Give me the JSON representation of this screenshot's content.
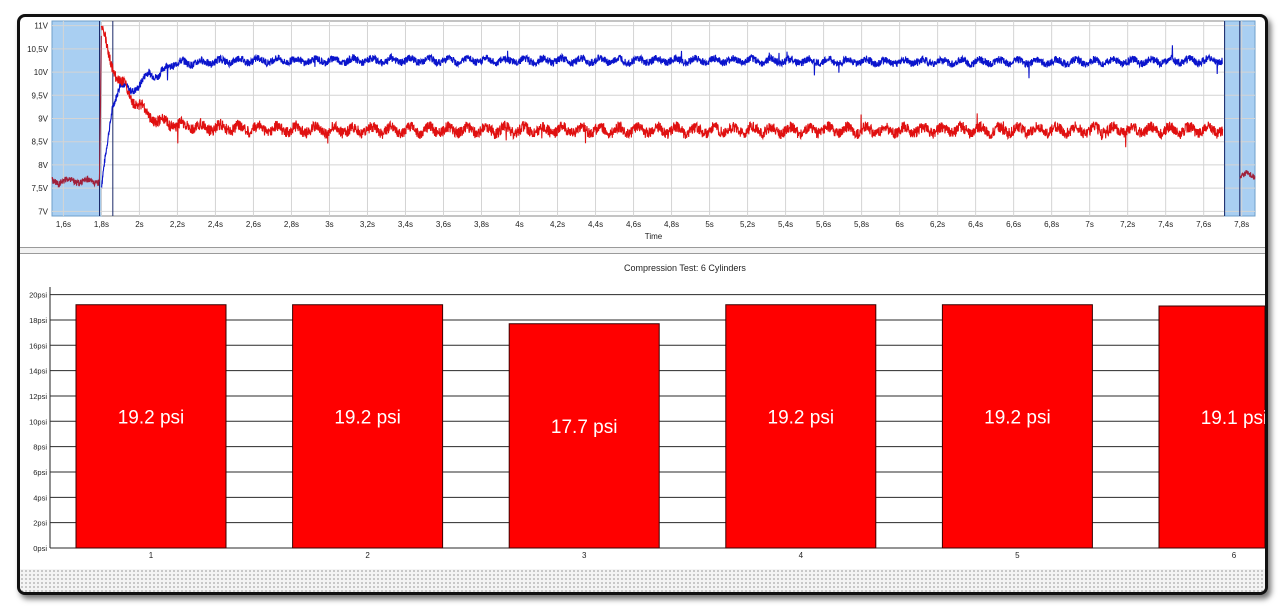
{
  "chart_data": [
    {
      "type": "line",
      "title": "",
      "xlabel": "Time",
      "ylabel": "",
      "xlim": [
        1.54,
        7.87
      ],
      "ylim": [
        6.9,
        11.1
      ],
      "x_ticks": [
        "1,6s",
        "1,8s",
        "2s",
        "2,2s",
        "2,4s",
        "2,6s",
        "2,8s",
        "3s",
        "3,2s",
        "3,4s",
        "3,6s",
        "3,8s",
        "4s",
        "4,2s",
        "4,4s",
        "4,6s",
        "4,8s",
        "5s",
        "5,2s",
        "5,4s",
        "5,6s",
        "5,8s",
        "6s",
        "6,2s",
        "6,4s",
        "6,6s",
        "6,8s",
        "7s",
        "7,2s",
        "7,4s",
        "7,6s",
        "7,8s"
      ],
      "x_tick_values": [
        1.6,
        1.8,
        2.0,
        2.2,
        2.4,
        2.6,
        2.8,
        3.0,
        3.2,
        3.4,
        3.6,
        3.8,
        4.0,
        4.2,
        4.4,
        4.6,
        4.8,
        5.0,
        5.2,
        5.4,
        5.6,
        5.8,
        6.0,
        6.2,
        6.4,
        6.6,
        6.8,
        7.0,
        7.2,
        7.4,
        7.6,
        7.8
      ],
      "y_ticks": [
        "7V",
        "7,5V",
        "8V",
        "8,5V",
        "9V",
        "9,5V",
        "10V",
        "10,5V",
        "11V"
      ],
      "y_tick_values": [
        7,
        7.5,
        8,
        8.5,
        9,
        9.5,
        10,
        10.5,
        11
      ],
      "grid": true,
      "highlight_regions": [
        [
          1.54,
          1.8
        ],
        [
          7.71,
          7.87
        ]
      ],
      "cursor_lines": [
        1.79,
        1.86,
        7.71,
        7.79
      ],
      "series": [
        {
          "color": "#0a14cc",
          "points": [
            [
              1.8,
              7.55
            ],
            [
              1.83,
              8.4
            ],
            [
              1.86,
              9.3
            ],
            [
              1.9,
              9.75
            ],
            [
              1.95,
              9.6
            ],
            [
              2.0,
              9.7
            ],
            [
              2.05,
              10.0
            ],
            [
              2.1,
              9.9
            ],
            [
              2.15,
              10.15
            ],
            [
              2.2,
              10.2
            ],
            [
              2.3,
              10.2
            ],
            [
              2.5,
              10.25
            ],
            [
              3.0,
              10.25
            ],
            [
              4.0,
              10.25
            ],
            [
              5.0,
              10.25
            ],
            [
              6.0,
              10.22
            ],
            [
              7.0,
              10.22
            ],
            [
              7.7,
              10.25
            ]
          ],
          "noise": 0.08
        },
        {
          "color": "#e01010",
          "points": [
            [
              1.8,
              11.05
            ],
            [
              1.84,
              10.3
            ],
            [
              1.88,
              9.9
            ],
            [
              1.92,
              9.7
            ],
            [
              1.96,
              9.4
            ],
            [
              2.0,
              9.3
            ],
            [
              2.05,
              9.05
            ],
            [
              2.1,
              8.95
            ],
            [
              2.2,
              8.85
            ],
            [
              2.4,
              8.8
            ],
            [
              3.0,
              8.75
            ],
            [
              4.0,
              8.75
            ],
            [
              5.0,
              8.75
            ],
            [
              6.0,
              8.75
            ],
            [
              7.0,
              8.75
            ],
            [
              7.7,
              8.75
            ]
          ],
          "noise": 0.12
        },
        {
          "color": "#a0203a",
          "points": [
            [
              1.54,
              7.65
            ],
            [
              1.79,
              7.65
            ],
            [
              1.8,
              11.0
            ]
          ],
          "noise": 0.07
        },
        {
          "color": "#a0203a",
          "points": [
            [
              7.79,
              7.78
            ],
            [
              7.87,
              7.78
            ]
          ],
          "noise": 0.07
        }
      ]
    },
    {
      "type": "bar",
      "title": "Compression Test: 6 Cylinders",
      "xlabel": "",
      "ylabel": "",
      "categories": [
        "1",
        "2",
        "3",
        "4",
        "5",
        "6"
      ],
      "values": [
        19.2,
        19.2,
        17.7,
        19.2,
        19.2,
        19.1
      ],
      "data_labels": [
        "19.2 psi",
        "19.2 psi",
        "17.7 psi",
        "19.2 psi",
        "19.2 psi",
        "19.1 psi"
      ],
      "y_ticks": [
        "0psi",
        "2psi",
        "4psi",
        "6psi",
        "8psi",
        "10psi",
        "12psi",
        "14psi",
        "16psi",
        "18psi",
        "20psi"
      ],
      "ylim": [
        0,
        20.6
      ],
      "bar_color": "#ff0000",
      "grid": true
    }
  ]
}
